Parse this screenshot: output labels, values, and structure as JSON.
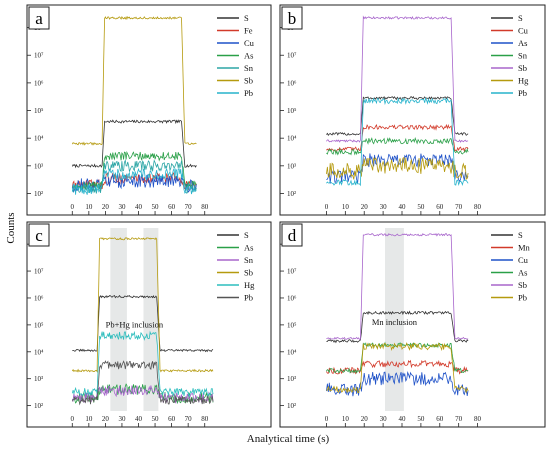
{
  "chart_data": {
    "type": "line",
    "log_y": true,
    "shared_xlabel": "Analytical time (s)",
    "shared_ylabel": "Counts",
    "panels": [
      {
        "letter": "a",
        "xlim": [
          -5,
          85
        ],
        "xticks": [
          "0",
          "10",
          "20",
          "30",
          "40",
          "50",
          "60",
          "70",
          "80"
        ],
        "ylim_log10": [
          1.8,
          8.6
        ],
        "yticks": [
          "10²",
          "10³",
          "10⁴",
          "10⁵",
          "10⁶",
          "10⁷",
          "10⁸"
        ],
        "series": [
          {
            "name": "S",
            "color": "#333333",
            "values": {
              "t0": 0,
              "t1": 75,
              "rise": 18,
              "fall": 66,
              "bg": 3.0,
              "top": 4.6,
              "noise": 0.05
            }
          },
          {
            "name": "Fe",
            "color": "#d23a2a",
            "values": {
              "t0": 0,
              "t1": 75,
              "rise": 18,
              "fall": 66,
              "bg": 2.3,
              "top": 2.55,
              "noise": 0.2
            }
          },
          {
            "name": "Cu",
            "color": "#1f52c8",
            "values": {
              "t0": 0,
              "t1": 75,
              "rise": 18,
              "fall": 66,
              "bg": 2.3,
              "top": 2.45,
              "noise": 0.25
            }
          },
          {
            "name": "As",
            "color": "#2aa048",
            "values": {
              "t0": 0,
              "t1": 75,
              "rise": 18,
              "fall": 66,
              "bg": 2.3,
              "top": 3.35,
              "noise": 0.15
            }
          },
          {
            "name": "Sn",
            "color": "#2da6a6",
            "values": {
              "t0": 0,
              "t1": 75,
              "rise": 18,
              "fall": 66,
              "bg": 2.2,
              "top": 3.0,
              "noise": 0.2
            }
          },
          {
            "name": "Sb",
            "color": "#b59a0e",
            "values": {
              "t0": 0,
              "t1": 75,
              "rise": 18,
              "fall": 66,
              "bg": 3.8,
              "top": 8.35,
              "noise": 0.04
            }
          },
          {
            "name": "Pb",
            "color": "#27b3cc",
            "values": {
              "t0": 0,
              "t1": 75,
              "rise": 18,
              "fall": 66,
              "bg": 2.15,
              "top": 2.7,
              "noise": 0.2
            }
          }
        ]
      },
      {
        "letter": "b",
        "xlim": [
          -5,
          85
        ],
        "xticks": [
          "0",
          "10",
          "20",
          "30",
          "40",
          "50",
          "60",
          "70",
          "80"
        ],
        "ylim_log10": [
          1.8,
          8.6
        ],
        "yticks": [
          "10²",
          "10³",
          "10⁴",
          "10⁵",
          "10⁶",
          "10⁷",
          "10⁸"
        ],
        "series": [
          {
            "name": "S",
            "color": "#333333",
            "values": {
              "t0": 0,
              "t1": 75,
              "rise": 18,
              "fall": 66,
              "bg": 4.15,
              "top": 5.45,
              "noise": 0.05
            }
          },
          {
            "name": "Cu",
            "color": "#d23a2a",
            "values": {
              "t0": 0,
              "t1": 75,
              "rise": 18,
              "fall": 66,
              "bg": 3.6,
              "top": 4.4,
              "noise": 0.08
            }
          },
          {
            "name": "As",
            "color": "#1f52c8",
            "values": {
              "t0": 0,
              "t1": 75,
              "rise": 18,
              "fall": 66,
              "bg": 2.6,
              "top": 3.2,
              "noise": 0.25
            }
          },
          {
            "name": "Sn",
            "color": "#2aa048",
            "values": {
              "t0": 0,
              "t1": 75,
              "rise": 18,
              "fall": 66,
              "bg": 3.5,
              "top": 3.9,
              "noise": 0.1
            }
          },
          {
            "name": "Sb",
            "color": "#a866cc",
            "values": {
              "t0": 0,
              "t1": 75,
              "rise": 18,
              "fall": 66,
              "bg": 3.9,
              "top": 8.35,
              "noise": 0.04
            }
          },
          {
            "name": "Hg",
            "color": "#b59a0e",
            "values": {
              "t0": 0,
              "t1": 75,
              "rise": 18,
              "fall": 66,
              "bg": 2.8,
              "top": 3.0,
              "noise": 0.3
            }
          },
          {
            "name": "Pb",
            "color": "#27b3cc",
            "values": {
              "t0": 0,
              "t1": 75,
              "rise": 18,
              "fall": 66,
              "bg": 2.4,
              "top": 5.35,
              "noise": 0.1
            }
          }
        ]
      },
      {
        "letter": "c",
        "xlim": [
          -5,
          85
        ],
        "xticks": [
          "0",
          "10",
          "20",
          "30",
          "40",
          "50",
          "60",
          "70",
          "80"
        ],
        "ylim_log10": [
          1.8,
          8.6
        ],
        "yticks": [
          "10²",
          "10³",
          "10⁴",
          "10⁵",
          "10⁶",
          "10⁷",
          "10⁸"
        ],
        "annotation": "Pb+Hg inclusion",
        "shaded_ranges": [
          [
            23,
            33
          ],
          [
            43,
            52
          ]
        ],
        "series": [
          {
            "name": "S",
            "color": "#333333",
            "values": {
              "t0": 0,
              "t1": 85,
              "rise": 15,
              "fall": 51,
              "bg": 4.05,
              "top": 6.05,
              "noise": 0.04
            }
          },
          {
            "name": "As",
            "color": "#2aa048",
            "values": {
              "t0": 0,
              "t1": 85,
              "rise": 15,
              "fall": 51,
              "bg": 2.3,
              "top": 2.6,
              "noise": 0.2
            }
          },
          {
            "name": "Sn",
            "color": "#a866cc",
            "values": {
              "t0": 0,
              "t1": 85,
              "rise": 15,
              "fall": 51,
              "bg": 2.3,
              "top": 2.55,
              "noise": 0.2
            }
          },
          {
            "name": "Sb",
            "color": "#b59a0e",
            "values": {
              "t0": 0,
              "t1": 85,
              "rise": 15,
              "fall": 51,
              "bg": 3.3,
              "top": 8.2,
              "noise": 0.04
            }
          },
          {
            "name": "Hg",
            "color": "#2dbdbd",
            "values": {
              "t0": 0,
              "t1": 85,
              "rise": 15,
              "fall": 51,
              "bg": 2.5,
              "top": 4.6,
              "noise": 0.15
            }
          },
          {
            "name": "Pb",
            "color": "#555555",
            "values": {
              "t0": 0,
              "t1": 85,
              "rise": 15,
              "fall": 51,
              "bg": 2.2,
              "top": 3.5,
              "noise": 0.15
            }
          }
        ]
      },
      {
        "letter": "d",
        "xlim": [
          -5,
          85
        ],
        "xticks": [
          "0",
          "10",
          "20",
          "30",
          "40",
          "50",
          "60",
          "70",
          "80"
        ],
        "ylim_log10": [
          1.8,
          8.6
        ],
        "yticks": [
          "10²",
          "10³",
          "10⁴",
          "10⁵",
          "10⁶",
          "10⁷",
          "10⁸"
        ],
        "annotation": "Mn inclusion",
        "shaded_ranges": [
          [
            31,
            41
          ]
        ],
        "series": [
          {
            "name": "S",
            "color": "#333333",
            "values": {
              "t0": 0,
              "t1": 75,
              "rise": 18,
              "fall": 66,
              "bg": 4.4,
              "top": 5.45,
              "noise": 0.05
            }
          },
          {
            "name": "Mn",
            "color": "#d23a2a",
            "values": {
              "t0": 0,
              "t1": 75,
              "rise": 18,
              "fall": 66,
              "bg": 3.3,
              "top": 3.55,
              "noise": 0.12
            }
          },
          {
            "name": "Cu",
            "color": "#1f52c8",
            "values": {
              "t0": 0,
              "t1": 75,
              "rise": 18,
              "fall": 66,
              "bg": 2.6,
              "top": 3.0,
              "noise": 0.25
            }
          },
          {
            "name": "As",
            "color": "#2aa048",
            "values": {
              "t0": 0,
              "t1": 75,
              "rise": 18,
              "fall": 66,
              "bg": 3.3,
              "top": 4.25,
              "noise": 0.08
            }
          },
          {
            "name": "Sb",
            "color": "#a866cc",
            "values": {
              "t0": 0,
              "t1": 75,
              "rise": 18,
              "fall": 66,
              "bg": 4.5,
              "top": 8.35,
              "noise": 0.04
            }
          },
          {
            "name": "Pb",
            "color": "#b59a0e",
            "values": {
              "t0": 0,
              "t1": 75,
              "rise": 18,
              "fall": 66,
              "bg": 2.6,
              "top": 4.2,
              "noise": 0.12
            }
          }
        ]
      }
    ]
  }
}
